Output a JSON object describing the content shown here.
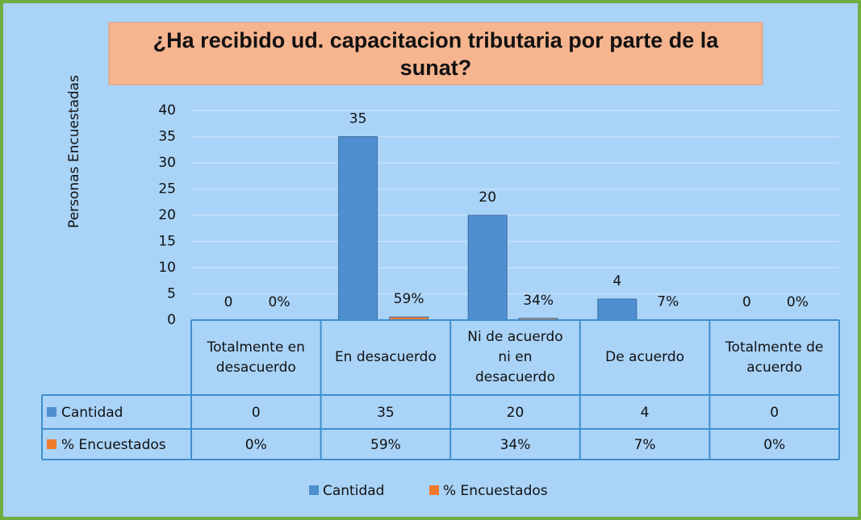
{
  "chart_data": {
    "type": "bar",
    "title": "¿Ha recibido ud. capacitacion tributaria por parte de la sunat?",
    "y_label": "Personas Encuestadas",
    "categories": [
      "Totalmente en desacuerdo",
      "En desacuerdo",
      "Ni de acuerdo ni en desacuerdo",
      "De acuerdo",
      "Totalmente de acuerdo"
    ],
    "series": [
      {
        "name": "Cantidad",
        "color": "#4f8fd0",
        "values": [
          0,
          35,
          20,
          4,
          0
        ]
      },
      {
        "name": "% Encuestados",
        "color": "#f07b2c",
        "values": [
          0,
          0.59,
          0.34,
          0.07,
          0
        ],
        "value_labels": [
          "0%",
          "59%",
          "34%",
          "7%",
          "0%"
        ]
      }
    ],
    "ylim": [
      0,
      40
    ],
    "yticks": [
      0,
      5,
      10,
      15,
      20,
      25,
      30,
      35,
      40
    ],
    "grid": true,
    "legend": "bottom",
    "data_table": true
  }
}
